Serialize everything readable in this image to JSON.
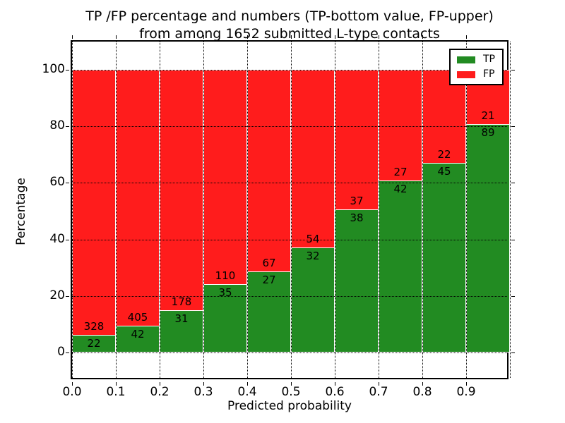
{
  "figure": {
    "title_line1": "TP /FP percentage and numbers (TP-bottom value, FP-upper)",
    "title_line2": "from among 1652 submitted L-type contacts"
  },
  "chart_data": {
    "type": "bar",
    "stacked": true,
    "normalized_to_percent": true,
    "title": "TP /FP percentage and numbers (TP-bottom value, FP-upper) from among 1652 submitted L-type contacts",
    "xlabel": "Predicted probability",
    "ylabel": "Percentage",
    "total_contacts": 1652,
    "categories": [
      "0.0",
      "0.1",
      "0.2",
      "0.3",
      "0.4",
      "0.5",
      "0.6",
      "0.7",
      "0.8",
      "0.9"
    ],
    "bin_width": 0.1,
    "series": [
      {
        "name": "TP",
        "color": "#228b22",
        "values": [
          22,
          42,
          31,
          35,
          27,
          32,
          38,
          42,
          45,
          89
        ]
      },
      {
        "name": "FP",
        "color": "#ff1c1c",
        "values": [
          328,
          405,
          178,
          110,
          67,
          54,
          37,
          27,
          22,
          21
        ]
      }
    ],
    "tp_percent_of_bin": [
      6.3,
      9.4,
      14.8,
      24.1,
      28.7,
      37.2,
      50.7,
      60.9,
      67.2,
      80.9
    ],
    "x_tick_labels": [
      "0.0",
      "0.1",
      "0.2",
      "0.3",
      "0.4",
      "0.5",
      "0.6",
      "0.7",
      "0.8",
      "0.9"
    ],
    "y_tick_values": [
      0,
      20,
      40,
      60,
      80,
      100
    ],
    "y_tick_labels": [
      "0",
      "20",
      "40",
      "60",
      "80",
      "100"
    ],
    "xlim": [
      0.0,
      1.0
    ],
    "ylim": [
      -10,
      110
    ],
    "grid": "dotted",
    "legend": {
      "position": "upper right",
      "entries": [
        "TP",
        "FP"
      ]
    }
  }
}
